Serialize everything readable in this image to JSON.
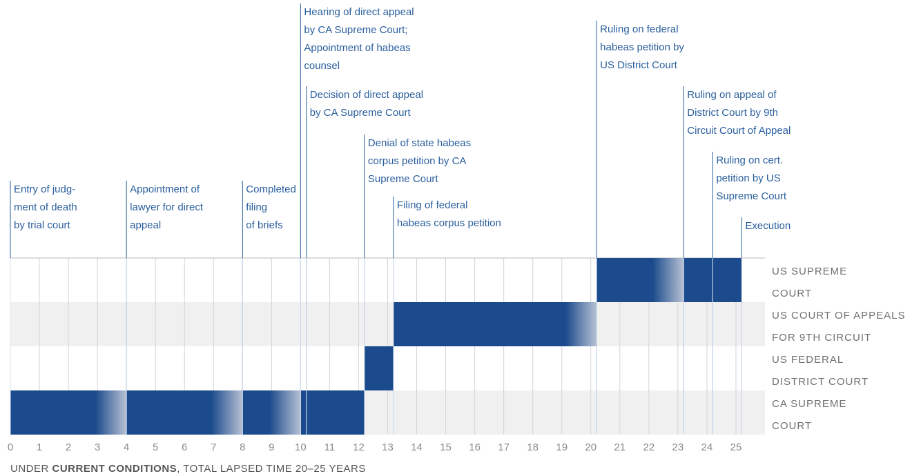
{
  "chart_data": {
    "type": "timeline",
    "rows": [
      [
        "US SUPREME",
        "COURT"
      ],
      [
        "US COURT OF APPEALS",
        "FOR 9TH CIRCUIT"
      ],
      [
        "US FEDERAL",
        "DISTRICT COURT"
      ],
      [
        "CA SUPREME",
        "COURT"
      ]
    ],
    "events": [
      {
        "label": [
          "Entry of judg-",
          "ment of death",
          "by trial court"
        ],
        "year": 0
      },
      {
        "label": [
          "Appointment of",
          "lawyer for direct",
          "appeal"
        ],
        "year": 4
      },
      {
        "label": [
          "Completed",
          "filing",
          "of briefs"
        ],
        "year": 8
      },
      {
        "label": [
          "Hearing of direct appeal",
          "by CA Supreme Court;",
          "Appointment of habeas",
          "counsel"
        ],
        "year": 10
      },
      {
        "label": [
          "Decision of direct appeal",
          "by CA Supreme Court"
        ],
        "year": 10.2
      },
      {
        "label": [
          "Denial of state habeas",
          "corpus petition by CA",
          "Supreme Court"
        ],
        "year": 12.2
      },
      {
        "label": [
          "Filing of federal",
          "habeas corpus petition"
        ],
        "year": 13.2
      },
      {
        "label": [
          "Ruling on federal",
          "habeas petition by",
          "US District Court"
        ],
        "year": 20.2
      },
      {
        "label": [
          "Ruling on appeal of",
          "District Court by 9th",
          "Circuit Court of Appeal"
        ],
        "year": 23.2
      },
      {
        "label": [
          "Ruling on cert.",
          "petition by US",
          "Supreme Court"
        ],
        "year": 24.2
      },
      {
        "label": [
          "Execution"
        ],
        "year": 25.2
      }
    ],
    "bars": [
      {
        "row": 3,
        "start": 0,
        "end": 4,
        "fade": true
      },
      {
        "row": 3,
        "start": 4,
        "end": 8,
        "fade": true
      },
      {
        "row": 3,
        "start": 8,
        "end": 10,
        "fade": true
      },
      {
        "row": 3,
        "start": 10,
        "end": 10.2,
        "fade": false
      },
      {
        "row": 3,
        "start": 10.2,
        "end": 12.2,
        "fade": false
      },
      {
        "row": 2,
        "start": 12.2,
        "end": 13.2,
        "fade": false
      },
      {
        "row": 1,
        "start": 13.2,
        "end": 20.2,
        "fade": true
      },
      {
        "row": 0,
        "start": 20.2,
        "end": 23.2,
        "fade": true
      },
      {
        "row": 0,
        "start": 23.2,
        "end": 24.2,
        "fade": false
      },
      {
        "row": 0,
        "start": 24.2,
        "end": 25.2,
        "fade": false
      }
    ],
    "color": "#1b4b8c",
    "xlim": [
      0,
      26
    ],
    "xticks": [
      0,
      1,
      2,
      3,
      4,
      5,
      6,
      7,
      8,
      9,
      10,
      11,
      12,
      13,
      14,
      15,
      16,
      17,
      18,
      19,
      20,
      21,
      22,
      23,
      24,
      25
    ],
    "grid": true,
    "footer": {
      "prefix": "UNDER ",
      "bold": "CURRENT CONDITIONS",
      "suffix": ", TOTAL LAPSED TIME 20–25 YEARS"
    }
  }
}
